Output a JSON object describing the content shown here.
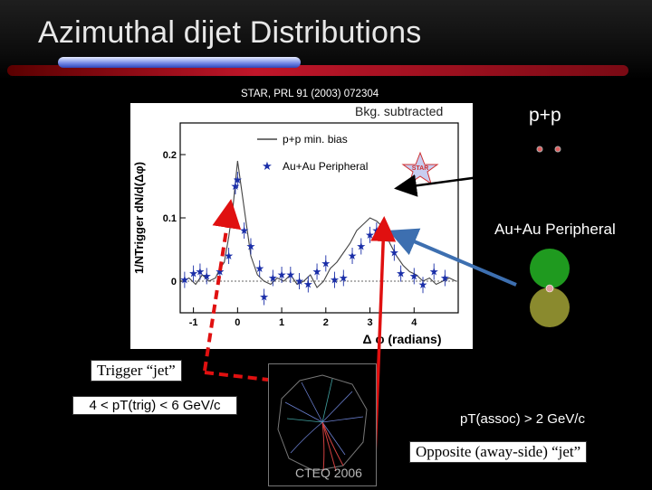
{
  "slide": {
    "title": "Azimuthal dijet Distributions",
    "source": "STAR, PRL 91 (2003) 072304",
    "bkg_label": "Bkg. subtracted",
    "pp_label": "p+p",
    "auau_label": "Au+Au Peripheral",
    "trigger_label": "Trigger “jet”",
    "trigger_range": "4 < pT(trig) < 6 GeV/c",
    "assoc_range": "pT(assoc) > 2 GeV/c",
    "away_label": "Opposite (away-side) “jet”",
    "event_caption": "CTEQ 2006",
    "star_logo": "STAR"
  },
  "colors": {
    "arrow_red": "#e01010",
    "arrow_blue": "#3d6fb0",
    "auau_marker": "#1a2ea8",
    "green_nucleus": "#1f9a1f",
    "olive_nucleus": "#8a8a2e",
    "pp_dot": "#e06060"
  },
  "icons": [
    "star-logo-icon",
    "proton-dot-icon",
    "nucleus-icon",
    "event-display-icon"
  ],
  "chart_data": {
    "type": "line",
    "xlabel": "Δ φ (radians)",
    "ylabel": "1/NTrigger dN/d(Δφ)",
    "xlim": [
      -1.3,
      5.0
    ],
    "ylim": [
      -0.05,
      0.25
    ],
    "xticks": [
      -1,
      0,
      1,
      2,
      3,
      4
    ],
    "yticks": [
      0,
      0.1,
      0.2
    ],
    "legend": "top-center",
    "series": [
      {
        "name": "p+p min. bias",
        "style": "line",
        "x": [
          -1.25,
          -1.1,
          -0.95,
          -0.8,
          -0.65,
          -0.5,
          -0.4,
          -0.3,
          -0.2,
          -0.1,
          0.0,
          0.1,
          0.2,
          0.3,
          0.45,
          0.6,
          0.75,
          0.9,
          1.05,
          1.2,
          1.35,
          1.5,
          1.65,
          1.8,
          1.95,
          2.1,
          2.25,
          2.4,
          2.55,
          2.7,
          2.85,
          3.0,
          3.15,
          3.3,
          3.45,
          3.6,
          3.75,
          3.9,
          4.05,
          4.2,
          4.35,
          4.5,
          4.65,
          4.8,
          4.95
        ],
        "y": [
          0.0,
          0.005,
          -0.005,
          0.01,
          0.0,
          0.005,
          0.02,
          0.03,
          0.07,
          0.12,
          0.19,
          0.14,
          0.09,
          0.04,
          0.01,
          0.0,
          -0.005,
          0.005,
          0.0,
          0.01,
          -0.005,
          0.0,
          0.01,
          -0.01,
          0.0,
          0.02,
          0.03,
          0.045,
          0.06,
          0.08,
          0.09,
          0.1,
          0.095,
          0.085,
          0.06,
          0.04,
          0.025,
          0.015,
          0.01,
          0.0,
          0.005,
          -0.005,
          0.0,
          0.005,
          0.0
        ]
      },
      {
        "name": "Au+Au Peripheral",
        "style": "marker",
        "x": [
          -1.2,
          -1.0,
          -0.85,
          -0.7,
          -0.4,
          -0.2,
          -0.05,
          0.0,
          0.15,
          0.3,
          0.5,
          0.6,
          0.8,
          1.0,
          1.2,
          1.4,
          1.6,
          1.8,
          2.0,
          2.2,
          2.4,
          2.6,
          2.8,
          3.0,
          3.15,
          3.4,
          3.55,
          3.7,
          4.0,
          4.2,
          4.45,
          4.7
        ],
        "y": [
          0.002,
          0.012,
          0.015,
          0.008,
          0.015,
          0.04,
          0.15,
          0.16,
          0.08,
          0.055,
          0.02,
          -0.025,
          0.005,
          0.01,
          0.01,
          0.0,
          -0.005,
          0.015,
          0.028,
          0.002,
          0.005,
          0.04,
          0.055,
          0.073,
          0.08,
          0.075,
          0.045,
          0.012,
          0.008,
          -0.006,
          0.015,
          0.005
        ]
      }
    ]
  }
}
